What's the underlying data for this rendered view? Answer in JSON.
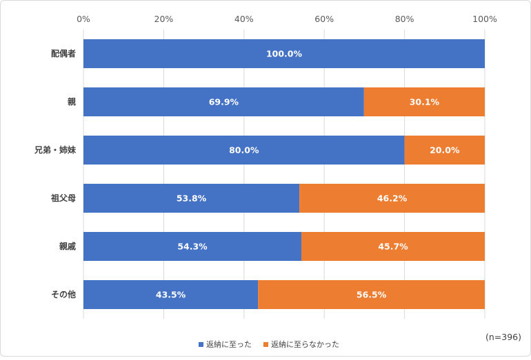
{
  "colors": {
    "series1": "#4472C4",
    "series2": "#ED7D31",
    "grid": "#d9d9d9"
  },
  "chart_data": {
    "type": "bar",
    "orientation": "horizontal",
    "stacked": true,
    "categories": [
      "配偶者",
      "親",
      "兄弟・姉妹",
      "祖父母",
      "親戚",
      "その他"
    ],
    "series": [
      {
        "name": "返納に至った",
        "values": [
          100.0,
          69.9,
          80.0,
          53.8,
          54.3,
          43.5
        ],
        "labels": [
          "100.0%",
          "69.9%",
          "80.0%",
          "53.8%",
          "54.3%",
          "43.5%"
        ]
      },
      {
        "name": "返納に至らなかった",
        "values": [
          0,
          30.1,
          20.0,
          46.2,
          45.7,
          56.5
        ],
        "labels": [
          "",
          "30.1%",
          "20.0%",
          "46.2%",
          "45.7%",
          "56.5%"
        ]
      }
    ],
    "xlim": [
      0,
      100
    ],
    "xticks": [
      "0%",
      "20%",
      "40%",
      "60%",
      "80%",
      "100%"
    ],
    "x_axis_position": "top",
    "grid": true,
    "legend_position": "bottom",
    "note": "(n=396)"
  }
}
